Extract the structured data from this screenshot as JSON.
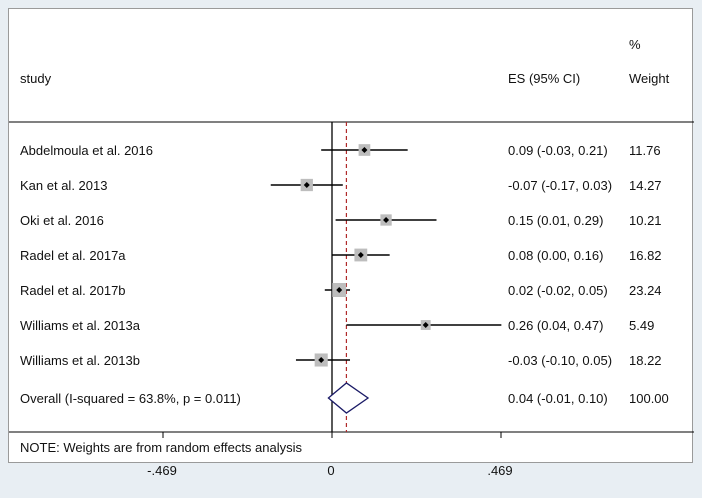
{
  "chart_data": {
    "type": "forest",
    "headers": {
      "study": "study",
      "es": "ES (95% CI)",
      "weight_top": "%",
      "weight_bottom": "Weight"
    },
    "studies": [
      {
        "name": "Abdelmoula et al. 2016",
        "es": 0.09,
        "lo": -0.03,
        "hi": 0.21,
        "es_ci": "0.09 (-0.03, 0.21)",
        "weight": 11.76,
        "weight_label": "11.76"
      },
      {
        "name": "Kan et al. 2013",
        "es": -0.07,
        "lo": -0.17,
        "hi": 0.03,
        "es_ci": "-0.07 (-0.17, 0.03)",
        "weight": 14.27,
        "weight_label": "14.27"
      },
      {
        "name": "Oki et al. 2016",
        "es": 0.15,
        "lo": 0.01,
        "hi": 0.29,
        "es_ci": "0.15 (0.01, 0.29)",
        "weight": 10.21,
        "weight_label": "10.21"
      },
      {
        "name": "Radel et al. 2017a",
        "es": 0.08,
        "lo": 0.0,
        "hi": 0.16,
        "es_ci": "0.08 (0.00, 0.16)",
        "weight": 16.82,
        "weight_label": "16.82"
      },
      {
        "name": "Radel et al. 2017b",
        "es": 0.02,
        "lo": -0.02,
        "hi": 0.05,
        "es_ci": "0.02 (-0.02, 0.05)",
        "weight": 23.24,
        "weight_label": "23.24"
      },
      {
        "name": "Williams et al. 2013a",
        "es": 0.26,
        "lo": 0.04,
        "hi": 0.47,
        "es_ci": "0.26 (0.04, 0.47)",
        "weight": 5.49,
        "weight_label": "5.49"
      },
      {
        "name": "Williams et al. 2013b",
        "es": -0.03,
        "lo": -0.1,
        "hi": 0.05,
        "es_ci": "-0.03 (-0.10, 0.05)",
        "weight": 18.22,
        "weight_label": "18.22"
      }
    ],
    "overall": {
      "label": "Overall  (I-squared = 63.8%, p = 0.011)",
      "es": 0.04,
      "lo": -0.01,
      "hi": 0.1,
      "es_ci": "0.04 (-0.01, 0.10)",
      "weight_label": "100.00"
    },
    "note": "NOTE: Weights are from random effects analysis",
    "x_ticks": [
      {
        "value": -0.469,
        "label": "-.469"
      },
      {
        "value": 0,
        "label": "0"
      },
      {
        "value": 0.469,
        "label": ".469"
      }
    ],
    "xlim": [
      -0.469,
      0.469
    ],
    "colors": {
      "line": "#000000",
      "square": "#bdbdbd",
      "overall_diamond": "#1a1a66",
      "overall_line": "#b02a2a"
    }
  }
}
